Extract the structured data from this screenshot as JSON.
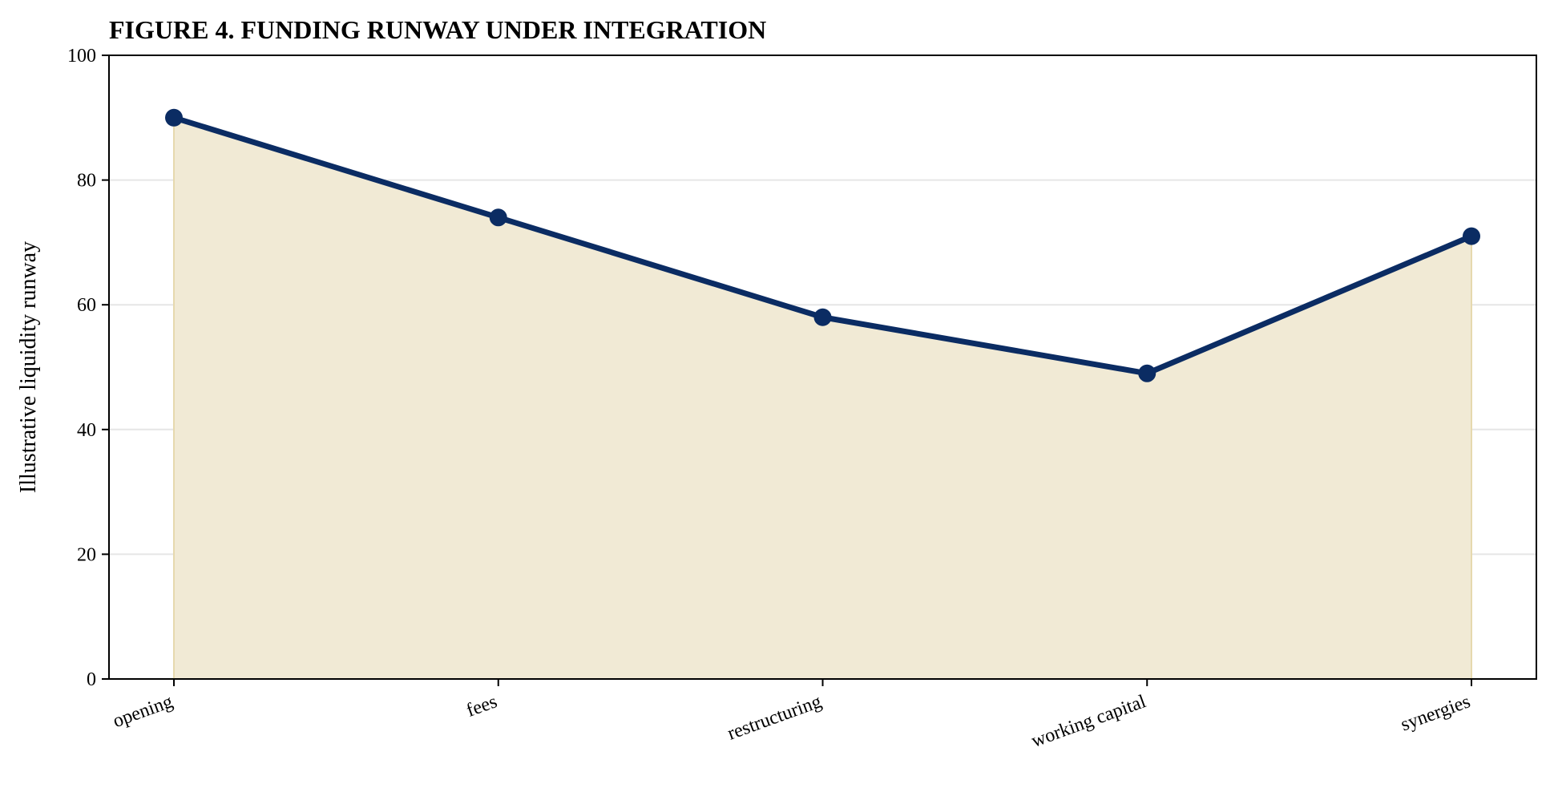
{
  "chart_data": {
    "type": "area",
    "title": "FIGURE 4. FUNDING RUNWAY UNDER INTEGRATION",
    "xlabel": "",
    "ylabel": "Illustrative liquidity runway",
    "categories": [
      "opening",
      "fees",
      "restructuring",
      "working capital",
      "synergies"
    ],
    "values": [
      90,
      74,
      58,
      49,
      71
    ],
    "ylim": [
      0,
      100
    ],
    "yticks": [
      0,
      20,
      40,
      60,
      80,
      100
    ],
    "grid": "horizontal",
    "colors": {
      "line": "#0b2c63",
      "fill": "#f1ead5",
      "fill_edge": "#e6d9ae",
      "grid": "#e6e6e6",
      "axis": "#000000"
    }
  }
}
